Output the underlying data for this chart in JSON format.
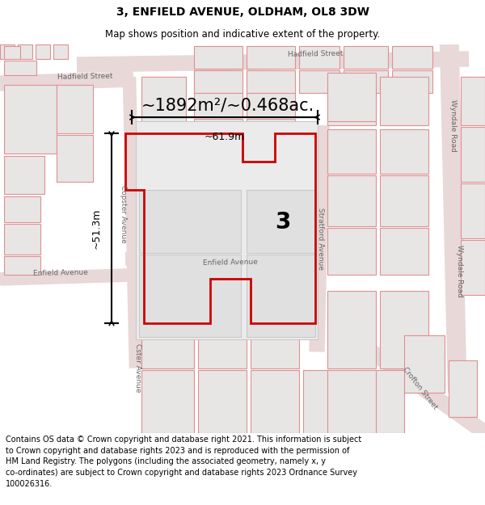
{
  "title": "3, ENFIELD AVENUE, OLDHAM, OL8 3DW",
  "subtitle": "Map shows position and indicative extent of the property.",
  "footer_text": "Contains OS data © Crown copyright and database right 2021. This information is subject\nto Crown copyright and database rights 2023 and is reproduced with the permission of\nHM Land Registry. The polygons (including the associated geometry, namely x, y\nco-ordinates) are subject to Crown copyright and database rights 2023 Ordnance Survey\n100026316.",
  "area_label": "~1892m²/~0.468ac.",
  "width_label": "~61.9m",
  "height_label": "~51.3m",
  "property_number": "3",
  "bg_color": "#f8f5f5",
  "bld_face": "#e8e5e5",
  "bld_edge": "#e09090",
  "road_color": "#e8d8d8",
  "title_fontsize": 10,
  "subtitle_fontsize": 8.5,
  "footer_fontsize": 7.0,
  "area_fontsize": 15
}
